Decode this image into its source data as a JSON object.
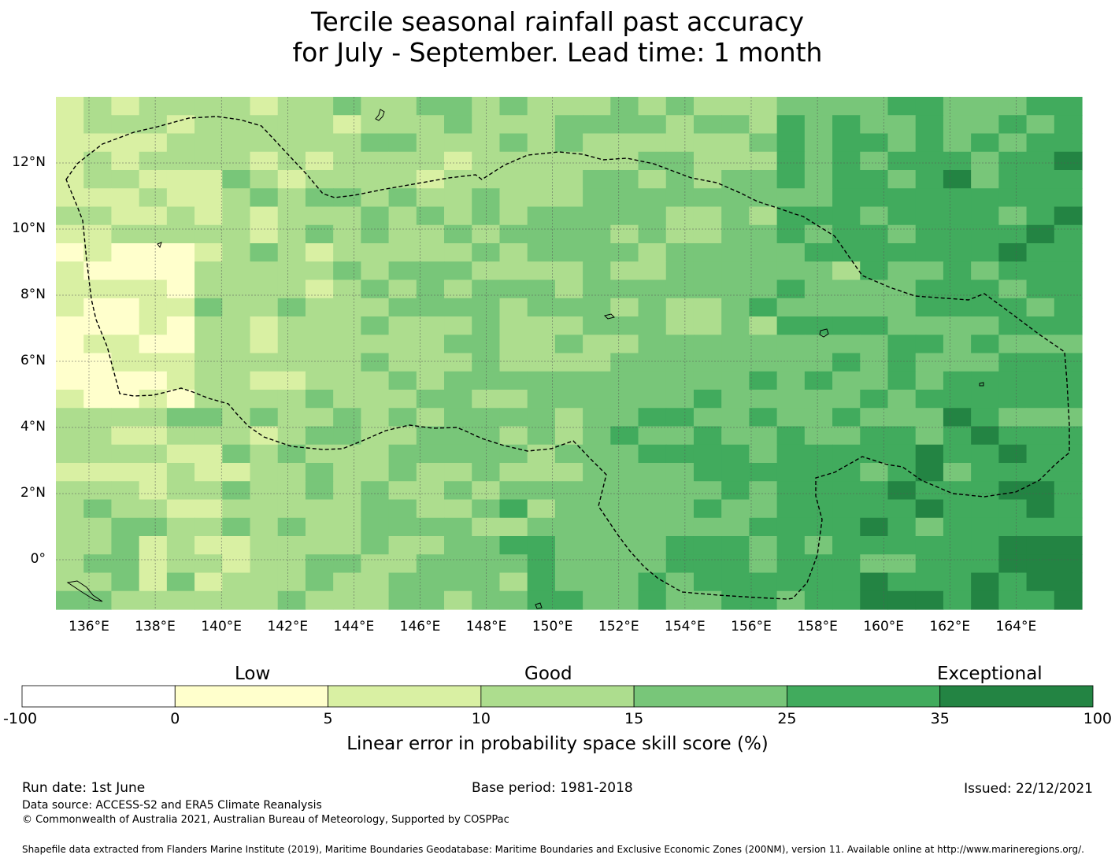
{
  "title_line1": "Tercile seasonal rainfall past accuracy",
  "title_line2": "for July - September. Lead time: 1 month",
  "map": {
    "lon_range": [
      135,
      166
    ],
    "lat_range": [
      -1.5,
      14
    ],
    "x_ticks": [
      "136°E",
      "138°E",
      "140°E",
      "142°E",
      "144°E",
      "146°E",
      "148°E",
      "150°E",
      "152°E",
      "154°E",
      "156°E",
      "158°E",
      "160°E",
      "162°E",
      "164°E"
    ],
    "y_ticks": [
      "12°N",
      "10°N",
      "8°N",
      "6°N",
      "4°N",
      "2°N",
      "0°"
    ]
  },
  "colorbar": {
    "labels": {
      "low": "Low",
      "good": "Good",
      "exceptional": "Exceptional"
    },
    "ticks": [
      "-100",
      "0",
      "5",
      "10",
      "15",
      "25",
      "35",
      "100"
    ],
    "colors": [
      "#ffffff",
      "#ffffcc",
      "#d9f0a3",
      "#addd8e",
      "#78c679",
      "#41ab5d",
      "#238443"
    ],
    "title": "Linear error in probability space skill score (%)"
  },
  "footer": {
    "run_date": "Run date: 1st June",
    "base_period": "Base period: 1981-2018",
    "issued": "Issued: 22/12/2021",
    "data_source": "Data source: ACCESS-S2 and ERA5 Climate Reanalysis",
    "copyright": "© Commonwealth of Australia 2021, Australian Bureau of Meteorology, Supported by COSPPac",
    "shapefile": "Shapefile data extracted from Flanders Marine Institute (2019), Maritime Boundaries Geodatabase: Maritime Boundaries and Exclusive Economic Zones (200NM), version 11. Available online at http://www.marineregions.org/."
  }
}
